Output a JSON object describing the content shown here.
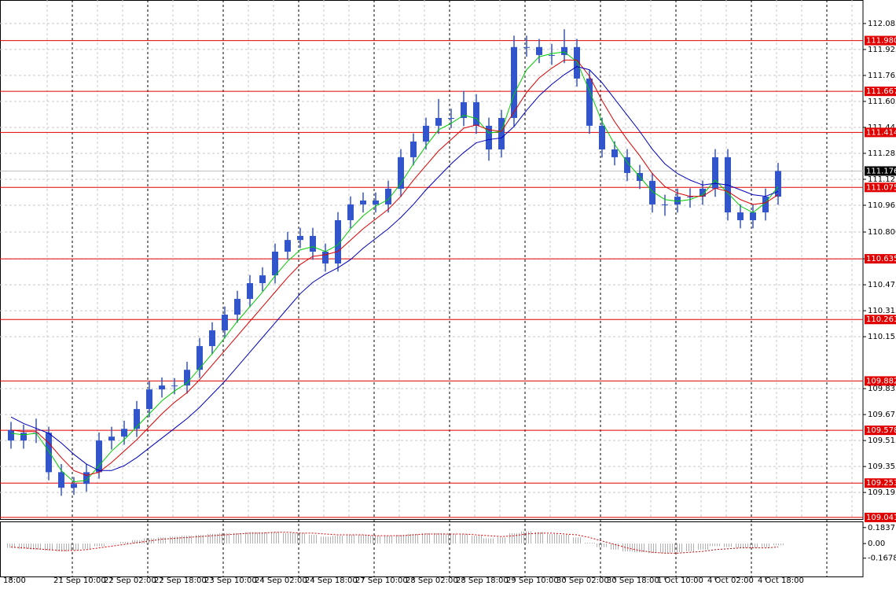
{
  "chart_data": {
    "type": "candlestick",
    "categories": [
      "18:00",
      null,
      null,
      null,
      "21 Sep 10:00",
      null,
      null,
      null,
      "22 Sep 02:00",
      null,
      null,
      null,
      "22 Sep 18:00",
      null,
      null,
      null,
      "23 Sep 10:00",
      null,
      null,
      null,
      "24 Sep 02:00",
      null,
      null,
      null,
      "24 Sep 18:00",
      null,
      null,
      null,
      "27 Sep 10:00",
      null,
      null,
      null,
      "28 Sep 02:00",
      null,
      null,
      null,
      "28 Sep 18:00",
      null,
      null,
      null,
      "29 Sep 10:00",
      null,
      null,
      null,
      "30 Sep 02:00",
      null,
      null,
      null,
      "30 Sep 18:00",
      null,
      null,
      null,
      "1 Oct 10:00",
      null,
      null,
      null,
      "4 Oct 02:00",
      null,
      null,
      null,
      "4 Oct 18:00",
      null
    ],
    "candles": [
      [
        109.58,
        109.63,
        109.465,
        109.515
      ],
      [
        109.515,
        109.613,
        109.465,
        109.563
      ],
      [
        109.563,
        109.65,
        109.5,
        109.563
      ],
      [
        109.563,
        109.6,
        109.27,
        109.32
      ],
      [
        109.32,
        109.37,
        109.174,
        109.224
      ],
      [
        109.224,
        109.29,
        109.18,
        109.248
      ],
      [
        109.248,
        109.37,
        109.2,
        109.32
      ],
      [
        109.32,
        109.565,
        109.28,
        109.515
      ],
      [
        109.515,
        109.6,
        109.46,
        109.539
      ],
      [
        109.539,
        109.637,
        109.489,
        109.587
      ],
      [
        109.587,
        109.759,
        109.537,
        109.709
      ],
      [
        109.709,
        109.88,
        109.659,
        109.83
      ],
      [
        109.83,
        109.904,
        109.78,
        109.854
      ],
      [
        109.854,
        109.9,
        109.8,
        109.854
      ],
      [
        109.854,
        110.001,
        109.804,
        109.951
      ],
      [
        109.951,
        110.147,
        109.901,
        110.097
      ],
      [
        110.097,
        110.244,
        110.047,
        110.194
      ],
      [
        110.194,
        110.341,
        110.144,
        110.291
      ],
      [
        110.291,
        110.438,
        110.241,
        110.388
      ],
      [
        110.388,
        110.535,
        110.338,
        110.485
      ],
      [
        110.485,
        110.583,
        110.435,
        110.533
      ],
      [
        110.533,
        110.729,
        110.483,
        110.679
      ],
      [
        110.679,
        110.801,
        110.629,
        110.751
      ],
      [
        110.751,
        110.826,
        110.701,
        110.776
      ],
      [
        110.776,
        110.826,
        110.629,
        110.679
      ],
      [
        110.679,
        110.729,
        110.556,
        110.606
      ],
      [
        110.606,
        110.923,
        110.556,
        110.873
      ],
      [
        110.873,
        111.02,
        110.823,
        110.97
      ],
      [
        110.97,
        111.044,
        110.92,
        110.994
      ],
      [
        110.994,
        111.044,
        110.92,
        110.97
      ],
      [
        110.97,
        111.117,
        110.92,
        111.067
      ],
      [
        111.067,
        111.311,
        111.017,
        111.261
      ],
      [
        111.261,
        111.408,
        111.211,
        111.358
      ],
      [
        111.358,
        111.505,
        111.308,
        111.455
      ],
      [
        111.455,
        111.62,
        111.405,
        111.503
      ],
      [
        111.503,
        111.56,
        111.44,
        111.503
      ],
      [
        111.503,
        111.67,
        111.453,
        111.6
      ],
      [
        111.6,
        111.65,
        111.405,
        111.455
      ],
      [
        111.455,
        111.505,
        111.24,
        111.309
      ],
      [
        111.309,
        111.553,
        111.259,
        111.503
      ],
      [
        111.503,
        112.01,
        111.453,
        111.94
      ],
      [
        111.94,
        112.01,
        111.88,
        111.94
      ],
      [
        111.94,
        111.99,
        111.841,
        111.891
      ],
      [
        111.891,
        111.96,
        111.83,
        111.891
      ],
      [
        111.891,
        112.05,
        111.841,
        111.94
      ],
      [
        111.94,
        111.99,
        111.696,
        111.746
      ],
      [
        111.746,
        111.796,
        111.405,
        111.455
      ],
      [
        111.455,
        111.505,
        111.259,
        111.309
      ],
      [
        111.309,
        111.359,
        111.211,
        111.261
      ],
      [
        111.261,
        111.311,
        111.114,
        111.164
      ],
      [
        111.164,
        111.214,
        111.065,
        111.115
      ],
      [
        111.115,
        111.165,
        110.92,
        110.97
      ],
      [
        110.97,
        111.03,
        110.9,
        110.97
      ],
      [
        110.97,
        111.068,
        110.92,
        111.018
      ],
      [
        111.018,
        111.07,
        110.95,
        111.018
      ],
      [
        111.018,
        111.117,
        110.968,
        111.067
      ],
      [
        111.067,
        111.311,
        111.017,
        111.261
      ],
      [
        111.261,
        111.311,
        110.871,
        110.921
      ],
      [
        110.921,
        110.971,
        110.823,
        110.873
      ],
      [
        110.873,
        110.971,
        110.823,
        110.921
      ],
      [
        110.921,
        111.068,
        110.871,
        111.018
      ],
      [
        111.018,
        111.226,
        110.968,
        111.176
      ]
    ],
    "color": "#3355cc",
    "moving_averages": [
      {
        "color": "#00cc00",
        "values": [
          109.56,
          109.55,
          109.56,
          109.45,
          109.33,
          109.26,
          109.27,
          109.36,
          109.45,
          109.52,
          109.6,
          109.68,
          109.76,
          109.82,
          109.87,
          109.96,
          110.05,
          110.15,
          110.25,
          110.34,
          110.43,
          110.53,
          110.62,
          110.69,
          110.71,
          110.68,
          110.72,
          110.82,
          110.9,
          110.96,
          111.0,
          111.1,
          111.22,
          111.33,
          111.43,
          111.47,
          111.52,
          111.5,
          111.41,
          111.42,
          111.65,
          111.8,
          111.88,
          111.9,
          111.91,
          111.85,
          111.67,
          111.48,
          111.34,
          111.23,
          111.14,
          111.05,
          111.0,
          110.99,
          111.0,
          111.03,
          111.12,
          111.04,
          110.96,
          110.92,
          110.98,
          111.08
        ]
      },
      {
        "color": "#dd0000",
        "values": [
          109.58,
          109.57,
          109.57,
          109.5,
          109.41,
          109.33,
          109.3,
          109.32,
          109.38,
          109.45,
          109.52,
          109.6,
          109.68,
          109.75,
          109.81,
          109.89,
          109.98,
          110.07,
          110.16,
          110.25,
          110.34,
          110.43,
          110.52,
          110.6,
          110.65,
          110.66,
          110.68,
          110.75,
          110.82,
          110.88,
          110.94,
          111.02,
          111.12,
          111.21,
          111.3,
          111.37,
          111.44,
          111.46,
          111.43,
          111.42,
          111.54,
          111.66,
          111.75,
          111.81,
          111.86,
          111.86,
          111.76,
          111.61,
          111.48,
          111.37,
          111.27,
          111.16,
          111.08,
          111.04,
          111.02,
          111.02,
          111.07,
          111.05,
          111.0,
          110.97,
          110.98,
          111.03
        ]
      },
      {
        "color": "#0000bb",
        "values": [
          109.66,
          109.62,
          109.59,
          109.56,
          109.5,
          109.43,
          109.37,
          109.33,
          109.33,
          109.36,
          109.41,
          109.47,
          109.53,
          109.59,
          109.65,
          109.72,
          109.8,
          109.88,
          109.97,
          110.06,
          110.15,
          110.24,
          110.33,
          110.42,
          110.49,
          110.54,
          110.58,
          110.63,
          110.7,
          110.76,
          110.82,
          110.89,
          110.97,
          111.06,
          111.14,
          111.22,
          111.29,
          111.35,
          111.37,
          111.38,
          111.45,
          111.55,
          111.64,
          111.71,
          111.77,
          111.82,
          111.8,
          111.72,
          111.62,
          111.52,
          111.42,
          111.31,
          111.22,
          111.16,
          111.12,
          111.09,
          111.1,
          111.09,
          111.06,
          111.03,
          111.02,
          111.05
        ]
      }
    ],
    "levels": [
      {
        "value": 111.98,
        "label": "111.980"
      },
      111.667,
      111.414,
      111.075,
      110.635,
      110.261,
      109.882,
      109.578,
      109.253,
      109.041
    ],
    "level_color": "#e00000",
    "current_price": 111.176,
    "ylim": [
      109.031,
      112.23
    ],
    "yticks": [
      112.085,
      111.925,
      111.765,
      111.605,
      111.445,
      111.285,
      111.125,
      110.965,
      {
        "value": 110.8,
        "label": "110.800"
      },
      110.635,
      110.475,
      110.315,
      110.155,
      109.835,
      109.675,
      109.515,
      109.355,
      109.195
    ],
    "grid": true,
    "indicator": {
      "type": "histogram",
      "color": "#b0b0b0",
      "signal_color": "#dd0000",
      "values": [
        -0.05,
        -0.06,
        -0.07,
        -0.08,
        -0.09,
        -0.08,
        -0.06,
        -0.03,
        0.0,
        0.02,
        0.04,
        0.06,
        0.07,
        0.08,
        0.09,
        0.1,
        0.11,
        0.12,
        0.12,
        0.13,
        0.13,
        0.13,
        0.12,
        0.12,
        0.1,
        0.08,
        0.09,
        0.1,
        0.1,
        0.09,
        0.09,
        0.1,
        0.11,
        0.12,
        0.12,
        0.11,
        0.11,
        0.09,
        0.06,
        0.07,
        0.12,
        0.14,
        0.13,
        0.11,
        0.1,
        0.07,
        0.01,
        -0.04,
        -0.07,
        -0.09,
        -0.1,
        -0.11,
        -0.11,
        -0.1,
        -0.09,
        -0.07,
        -0.03,
        -0.04,
        -0.05,
        -0.05,
        -0.04,
        -0.02
      ],
      "signal": [
        -0.04,
        -0.05,
        -0.06,
        -0.07,
        -0.08,
        -0.08,
        -0.07,
        -0.05,
        -0.03,
        -0.01,
        0.01,
        0.03,
        0.05,
        0.06,
        0.07,
        0.08,
        0.09,
        0.1,
        0.11,
        0.12,
        0.12,
        0.13,
        0.13,
        0.12,
        0.12,
        0.11,
        0.1,
        0.1,
        0.1,
        0.09,
        0.09,
        0.09,
        0.1,
        0.11,
        0.11,
        0.11,
        0.11,
        0.1,
        0.09,
        0.08,
        0.09,
        0.11,
        0.12,
        0.12,
        0.11,
        0.1,
        0.07,
        0.03,
        -0.01,
        -0.05,
        -0.08,
        -0.1,
        -0.11,
        -0.11,
        -0.1,
        -0.09,
        -0.07,
        -0.06,
        -0.05,
        -0.05,
        -0.05,
        -0.04
      ],
      "ylim": [
        -0.378,
        0.254
      ],
      "yticks": [
        0.1837,
        {
          "value": 0,
          "label": "0.00"
        },
        -0.1678
      ]
    }
  }
}
